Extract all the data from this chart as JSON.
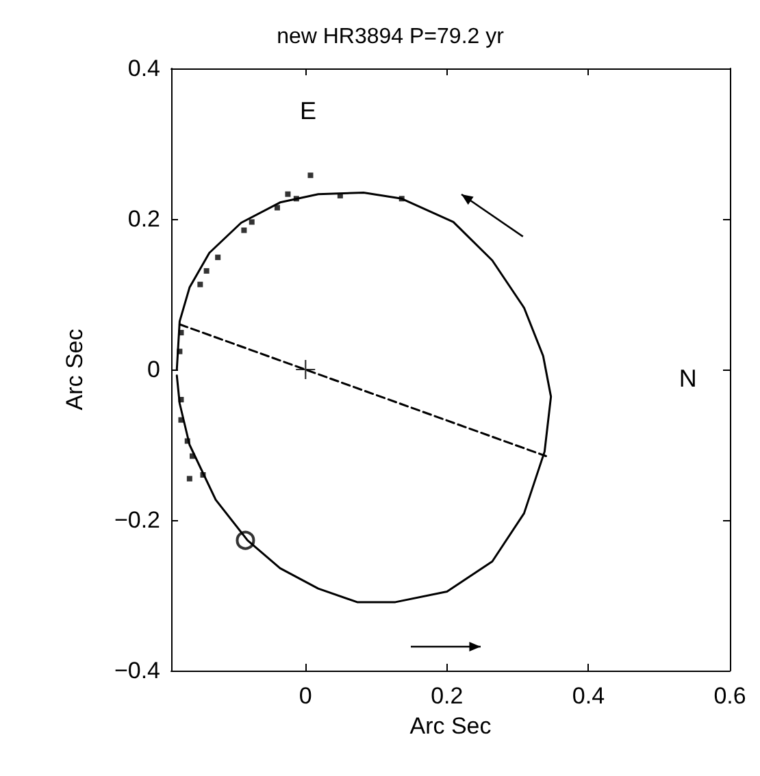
{
  "chart_data": {
    "type": "line",
    "title": "new HR3894 P=79.2 yr",
    "xlabel": "Arc Sec",
    "ylabel": "Arc Sec",
    "xlim": [
      -0.19,
      0.6
    ],
    "ylim": [
      -0.4,
      0.4
    ],
    "xticks": [
      0,
      0.2,
      0.4,
      0.6
    ],
    "yticks": [
      -0.4,
      -0.2,
      0,
      0.2,
      0.4
    ],
    "grid": false,
    "annotations": [
      "E",
      "N"
    ],
    "series": [
      {
        "color": "#000000",
        "line_style": "solid",
        "marker": "none",
        "x": [
          -0.182,
          -0.178,
          -0.164,
          -0.136,
          -0.091,
          -0.036,
          0.018,
          0.082,
          0.136,
          0.209,
          0.264,
          0.309,
          0.336,
          0.347,
          0.338,
          0.309,
          0.264,
          0.2,
          0.127,
          0.073,
          0.018,
          -0.036,
          -0.082,
          -0.127,
          -0.164,
          -0.178,
          -0.182
        ],
        "values": [
          0,
          0.064,
          0.109,
          0.155,
          0.195,
          0.222,
          0.233,
          0.235,
          0.227,
          0.196,
          0.145,
          0.082,
          0.018,
          -0.036,
          -0.109,
          -0.191,
          -0.255,
          -0.295,
          -0.309,
          -0.309,
          -0.291,
          -0.264,
          -0.227,
          -0.173,
          -0.1,
          -0.045,
          -0.008
        ]
      },
      {
        "color": "#000000",
        "line_style": "dashed",
        "marker": "none",
        "x": [
          -0.178,
          0.34
        ],
        "values": [
          0.06,
          -0.115
        ]
      },
      {
        "type": "scatter",
        "color": "#000000",
        "marker": "square",
        "x": [
          0.007,
          -0.025,
          -0.013,
          -0.04,
          -0.076,
          -0.087,
          -0.124,
          -0.14,
          -0.149,
          -0.176,
          -0.178,
          -0.176,
          -0.176,
          -0.167,
          -0.16,
          -0.145,
          -0.164,
          0.049,
          0.136
        ],
        "values": [
          0.258,
          0.233,
          0.227,
          0.215,
          0.196,
          0.185,
          0.149,
          0.131,
          0.113,
          0.049,
          0.024,
          -0.04,
          -0.067,
          -0.095,
          -0.115,
          -0.14,
          -0.145,
          0.231,
          0.227
        ]
      },
      {
        "type": "scatter",
        "color": "#000000",
        "marker": "cross",
        "x": [
          0
        ],
        "values": [
          0
        ]
      },
      {
        "type": "scatter",
        "color": "#000000",
        "marker": "circle",
        "x": [
          -0.085
        ],
        "values": [
          -0.227
        ]
      }
    ]
  }
}
